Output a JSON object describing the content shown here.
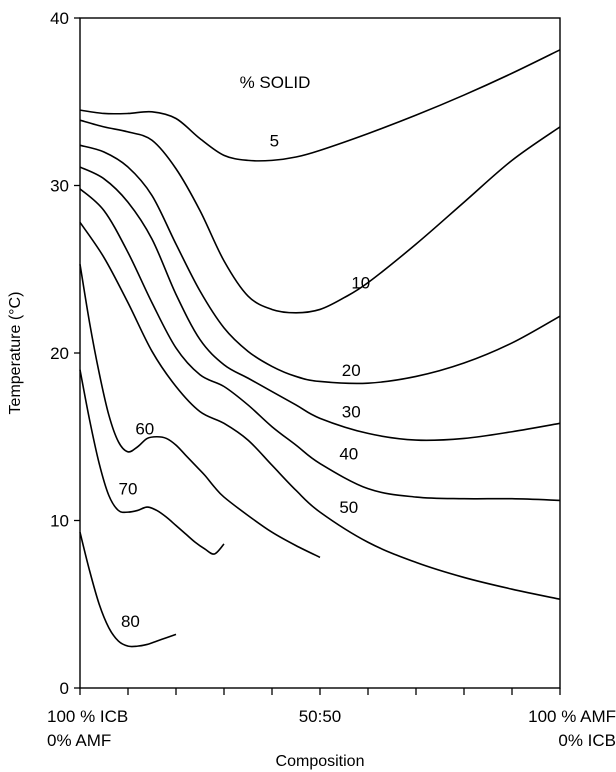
{
  "chart_data": {
    "type": "line",
    "title": "",
    "annotation": "% SOLID",
    "xlabel": "Composition",
    "ylabel": "Temperature (°C)",
    "xlim": [
      0,
      100
    ],
    "ylim": [
      0,
      40
    ],
    "yticks": [
      "0",
      "10",
      "20",
      "30",
      "40"
    ],
    "xtick_values": [
      0,
      10,
      20,
      30,
      40,
      50,
      60,
      70,
      80,
      90,
      100
    ],
    "xtick_labels": [
      {
        "x": 0,
        "line1": "100 % ICB",
        "line2": "0% AMF",
        "anchor": "start"
      },
      {
        "x": 50,
        "line1": "50:50",
        "line2": "",
        "anchor": "middle"
      },
      {
        "x": 100,
        "line1": "100 % AMF",
        "line2": "0% ICB",
        "anchor": "end"
      }
    ],
    "series": [
      {
        "name": "5",
        "label_at": [
          40.5,
          32.7
        ],
        "x": [
          0,
          5,
          10,
          15,
          20,
          25,
          30,
          35,
          40,
          45,
          50,
          60,
          70,
          80,
          90,
          100
        ],
        "y": [
          34.5,
          34.3,
          34.3,
          34.4,
          34.0,
          32.8,
          31.8,
          31.5,
          31.5,
          31.7,
          32.1,
          33.1,
          34.2,
          35.4,
          36.7,
          38.1
        ]
      },
      {
        "name": "10",
        "label_at": [
          58.5,
          24.2
        ],
        "x": [
          0,
          5,
          10,
          15,
          20,
          25,
          30,
          35,
          40,
          45,
          50,
          55,
          60,
          70,
          80,
          90,
          100
        ],
        "y": [
          33.9,
          33.5,
          33.2,
          32.7,
          31.0,
          28.5,
          25.5,
          23.4,
          22.6,
          22.4,
          22.6,
          23.3,
          24.2,
          26.5,
          29.0,
          31.5,
          33.5
        ]
      },
      {
        "name": "20",
        "label_at": [
          56.5,
          19.0
        ],
        "x": [
          0,
          5,
          10,
          15,
          20,
          25,
          30,
          35,
          40,
          45,
          50,
          60,
          70,
          80,
          90,
          100
        ],
        "y": [
          32.4,
          32.0,
          31.1,
          29.4,
          26.5,
          23.7,
          21.5,
          20.1,
          19.2,
          18.6,
          18.3,
          18.2,
          18.6,
          19.4,
          20.6,
          22.2
        ]
      },
      {
        "name": "30",
        "label_at": [
          56.5,
          16.5
        ],
        "x": [
          0,
          5,
          10,
          15,
          20,
          25,
          30,
          35,
          40,
          45,
          50,
          60,
          70,
          80,
          90,
          100
        ],
        "y": [
          31.1,
          30.4,
          29.0,
          26.8,
          23.5,
          20.8,
          19.3,
          18.5,
          17.7,
          16.9,
          16.1,
          15.2,
          14.8,
          14.9,
          15.3,
          15.8
        ]
      },
      {
        "name": "40",
        "label_at": [
          56.0,
          14.0
        ],
        "x": [
          0,
          5,
          10,
          15,
          20,
          25,
          30,
          35,
          40,
          45,
          50,
          60,
          70,
          80,
          90,
          100
        ],
        "y": [
          29.8,
          28.5,
          26.0,
          23.0,
          20.3,
          18.7,
          18.0,
          16.9,
          15.6,
          14.5,
          13.4,
          11.9,
          11.4,
          11.3,
          11.3,
          11.2
        ]
      },
      {
        "name": "50",
        "label_at": [
          56.0,
          10.8
        ],
        "x": [
          0,
          5,
          10,
          15,
          20,
          25,
          30,
          35,
          40,
          45,
          50,
          60,
          70,
          80,
          90,
          100
        ],
        "y": [
          27.8,
          25.7,
          23.0,
          20.1,
          18.0,
          16.5,
          15.8,
          14.8,
          13.3,
          11.8,
          10.5,
          8.7,
          7.5,
          6.6,
          5.9,
          5.3
        ]
      },
      {
        "name": "60",
        "label_at": [
          13.5,
          15.5
        ],
        "x": [
          0,
          2,
          4,
          6,
          8,
          10,
          12,
          14,
          16,
          18,
          20,
          22,
          24,
          26,
          28,
          30,
          35,
          40,
          45,
          50
        ],
        "y": [
          25.3,
          21.8,
          18.8,
          16.3,
          14.7,
          14.1,
          14.4,
          14.9,
          15.0,
          14.9,
          14.5,
          13.9,
          13.3,
          12.7,
          12.0,
          11.4,
          10.3,
          9.3,
          8.5,
          7.8
        ]
      },
      {
        "name": "70",
        "label_at": [
          10.0,
          11.9
        ],
        "x": [
          0,
          2,
          4,
          6,
          8,
          10,
          12,
          14,
          16,
          18,
          20,
          22,
          24,
          26,
          28,
          30
        ],
        "y": [
          19.0,
          16.0,
          13.4,
          11.5,
          10.6,
          10.5,
          10.6,
          10.8,
          10.6,
          10.2,
          9.7,
          9.2,
          8.7,
          8.3,
          8.0,
          8.6
        ]
      },
      {
        "name": "80",
        "label_at": [
          10.5,
          4.0
        ],
        "x": [
          0,
          2,
          4,
          6,
          8,
          10,
          12,
          14,
          16,
          18,
          20
        ],
        "y": [
          9.3,
          7.0,
          5.0,
          3.6,
          2.8,
          2.5,
          2.5,
          2.6,
          2.8,
          3.0,
          3.2
        ]
      }
    ]
  }
}
